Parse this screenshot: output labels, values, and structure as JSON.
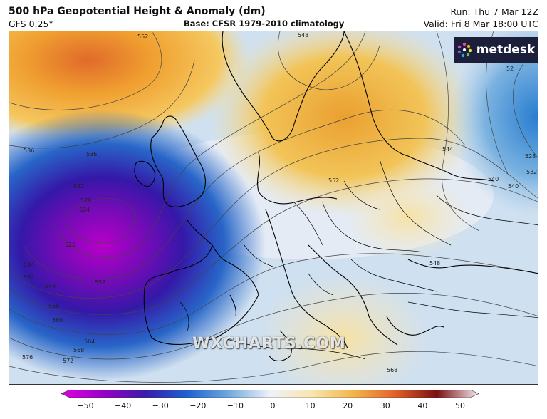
{
  "header": {
    "title": "500 hPa Geopotential Height & Anomaly (dm)",
    "model": "GFS 0.25°",
    "base": "Base: CFSR 1979-2010 climatology",
    "run": "Run: Thu 7 Mar 12Z",
    "valid": "Valid: Fri 8 Mar 18:00 UTC"
  },
  "logo": {
    "text": "metdesk",
    "icon": "metdesk-pinwheel-icon"
  },
  "watermark": "WXCHARTS.COM",
  "contour_labels": [
    "552",
    "548",
    "544",
    "540",
    "536",
    "532",
    "528",
    "524",
    "520",
    "552",
    "548",
    "552",
    "556",
    "560",
    "564",
    "568",
    "572",
    "576",
    "568",
    "548",
    "552",
    "544",
    "540",
    "536",
    "532",
    "528",
    "52"
  ],
  "colorbar": {
    "ticks": [
      "−50",
      "−40",
      "−30",
      "−20",
      "−10",
      "0",
      "10",
      "20",
      "30",
      "40",
      "50"
    ],
    "colors": [
      "#e000e0",
      "#9a00c8",
      "#3b1ca8",
      "#1f5fd0",
      "#6fa8de",
      "#e6eef8",
      "#f8eec8",
      "#f3b54a",
      "#e2622a",
      "#7a1010",
      "#f2e9ee"
    ]
  }
}
